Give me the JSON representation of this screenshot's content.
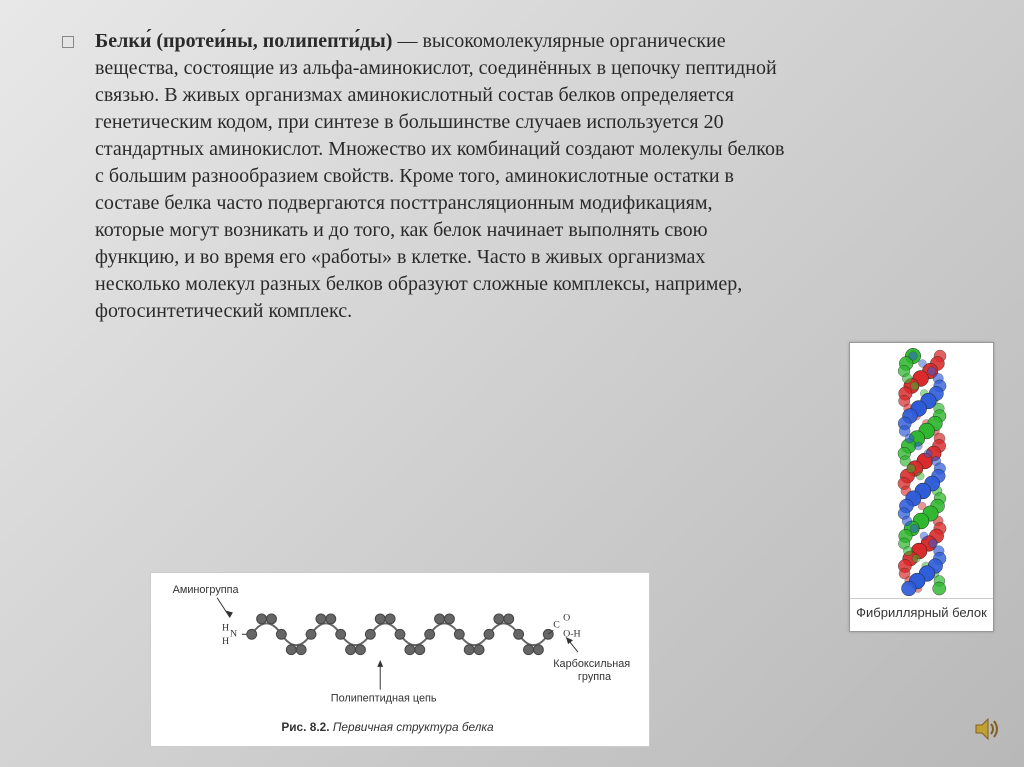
{
  "main": {
    "bold_prefix": "Белки́",
    "bold_parens": "(протеи́ны, полипепти́ды)",
    "body": " — высокомолекулярные органические вещества, состоящие из альфа-аминокислот, соединённых в цепочку пептидной связью. В живых организмах аминокислотный состав белков определяется генетическим кодом, при синтезе в большинстве случаев используется 20 стандартных аминокислот. Множество их комбинаций создают молекулы белков с большим разнообразием свойств. Кроме того, аминокислотные остатки в составе белка часто подвергаются посттрансляционным модификациям, которые могут возникать и до того, как белок начинает выполнять свою функцию, и во время его «работы» в клетке. Часто в живых организмах несколько молекул разных белков образуют сложные комплексы, например, фотосинтетический комплекс."
  },
  "bottom_diagram": {
    "label_amino": "Аминогруппа",
    "label_chain": "Полипептидная цепь",
    "label_carboxyl": "Карбоксильная группа",
    "caption": "Рис. 8.2. Первичная структура белка",
    "bead_color": "#666666",
    "h_color": "#333",
    "c_color": "#333",
    "o_color": "#333"
  },
  "protein": {
    "caption": "Фибриллярный белок",
    "colors": {
      "r": "#d92b2b",
      "g": "#2eb82e",
      "b": "#2e5cd9"
    }
  },
  "style": {
    "bg_gradient": [
      "#e8e8e8",
      "#d0d0d0",
      "#b8b8b8"
    ],
    "text_color": "#2a2a2a",
    "font_size_main": 20
  }
}
